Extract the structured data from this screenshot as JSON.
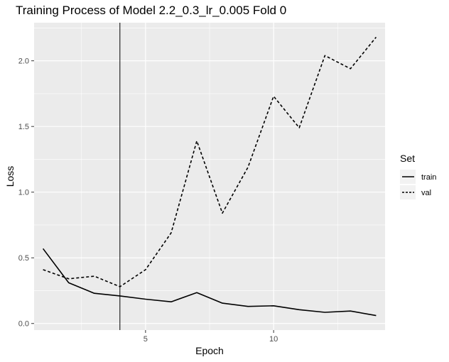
{
  "chart_data": {
    "type": "line",
    "title": "Training Process of Model 2.2_0.3_lr_0.005 Fold 0",
    "xlabel": "Epoch",
    "ylabel": "Loss",
    "xlim": [
      0.65,
      14.35
    ],
    "ylim": [
      -0.05,
      2.29
    ],
    "x_ticks": [
      5,
      10
    ],
    "y_ticks": [
      0.0,
      0.5,
      1.0,
      1.5,
      2.0
    ],
    "x_tick_labels": [
      "5",
      "10"
    ],
    "y_tick_labels": [
      "0.0",
      "0.5",
      "1.0",
      "1.5",
      "2.0"
    ],
    "vline_x": 4,
    "x": [
      1,
      2,
      3,
      4,
      5,
      6,
      7,
      8,
      9,
      10,
      11,
      12,
      13,
      14
    ],
    "legend": {
      "title": "Set",
      "position": "right"
    },
    "series": [
      {
        "name": "train",
        "linetype": "solid",
        "values": [
          0.57,
          0.31,
          0.23,
          0.21,
          0.185,
          0.165,
          0.235,
          0.155,
          0.13,
          0.135,
          0.105,
          0.085,
          0.095,
          0.06
        ]
      },
      {
        "name": "val",
        "linetype": "dashed",
        "values": [
          0.41,
          0.34,
          0.36,
          0.28,
          0.41,
          0.69,
          1.39,
          0.84,
          1.19,
          1.73,
          1.49,
          2.04,
          1.94,
          2.18
        ]
      }
    ],
    "panel_background": "#ebebeb",
    "grid_color": "#ffffff",
    "line_color": "#000000"
  }
}
